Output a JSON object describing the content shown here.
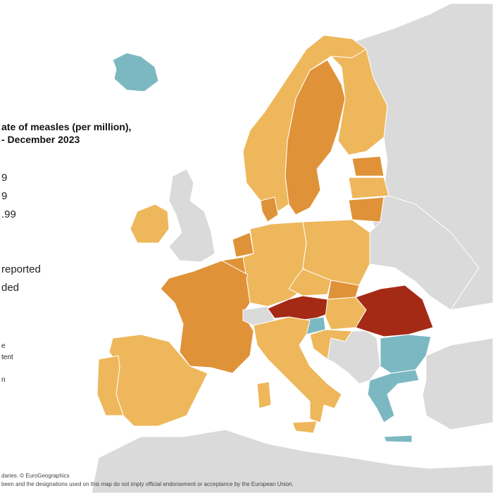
{
  "map": {
    "title_lines": [
      "ate of measles (per million),",
      "- December 2023"
    ],
    "legend": [
      "9",
      "9",
      ".99",
      "reported",
      "ded"
    ],
    "note": [
      "e",
      "tent",
      "n"
    ],
    "footer": [
      "daries. © EuroGeographics",
      "been and the designations used on this map do not imply official endorsement or acceptance by the European Union."
    ]
  }
}
